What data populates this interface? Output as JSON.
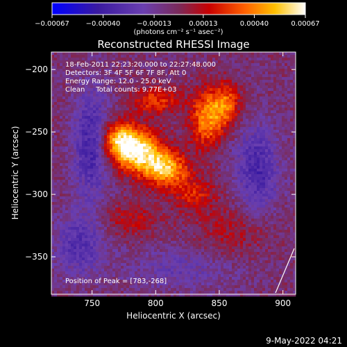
{
  "chart_data": {
    "type": "heatmap",
    "title": "Reconstructed RHESSI Image",
    "xlabel": "Heliocentric X (arcsec)",
    "ylabel": "Heliocentric Y (arcsec)",
    "xlim": [
      718,
      910
    ],
    "ylim": [
      -380,
      -186
    ],
    "x_ticks": [
      750,
      800,
      850,
      900
    ],
    "x_tick_labels": [
      "750",
      "800",
      "850",
      "900"
    ],
    "y_ticks": [
      -200,
      -250,
      -300,
      -350
    ],
    "y_tick_labels": [
      "−200",
      "−250",
      "−300",
      "−350"
    ],
    "colorbar": {
      "ticks": [
        -0.00067,
        -0.0004,
        -0.00013,
        0.00013,
        0.0004,
        0.00067
      ],
      "tick_labels": [
        "−0.00067",
        "−0.00040",
        "−0.00013",
        "0.00013",
        "0.00040",
        "0.00067"
      ],
      "unit_label": "(photons cm⁻² s⁻¹ asec⁻²)",
      "range": [
        -0.00067,
        0.00067
      ]
    },
    "annotations": [
      "18-Feb-2011 22:23:20.000 to 22:27:48.000",
      "Detectors: 3F 4F 5F 6F 7F 8F, Att 0",
      "Energy Range: 12.0 - 25.0 keV",
      "Clean     Total counts: 9.77E+03"
    ],
    "peak_label": "Position of Peak = [783,-268]",
    "peak": [
      783,
      -268
    ],
    "sources": [
      {
        "x": 785,
        "y": -265,
        "sx": 14,
        "sy": 12,
        "amp": 0.00067
      },
      {
        "x": 808,
        "y": -280,
        "sx": 12,
        "sy": 10,
        "amp": 0.00055
      },
      {
        "x": 770,
        "y": -255,
        "sx": 10,
        "sy": 10,
        "amp": 0.0004
      },
      {
        "x": 840,
        "y": -240,
        "sx": 9,
        "sy": 16,
        "amp": 0.00045
      },
      {
        "x": 855,
        "y": -228,
        "sx": 8,
        "sy": 12,
        "amp": 0.0004
      },
      {
        "x": 800,
        "y": -225,
        "sx": 14,
        "sy": 8,
        "amp": 0.0003
      },
      {
        "x": 830,
        "y": -300,
        "sx": 12,
        "sy": 10,
        "amp": 0.00025
      },
      {
        "x": 780,
        "y": -320,
        "sx": 16,
        "sy": 10,
        "amp": 0.00018
      },
      {
        "x": 860,
        "y": -330,
        "sx": 20,
        "sy": 14,
        "amp": 0.00015
      },
      {
        "x": 750,
        "y": -260,
        "sx": 10,
        "sy": 30,
        "amp": -0.00035
      },
      {
        "x": 880,
        "y": -280,
        "sx": 12,
        "sy": 25,
        "amp": -0.0003
      },
      {
        "x": 740,
        "y": -340,
        "sx": 14,
        "sy": 18,
        "amp": -0.00025
      },
      {
        "x": 820,
        "y": -360,
        "sx": 30,
        "sy": 12,
        "amp": -0.00015
      }
    ]
  },
  "footer": {
    "date": "9-May-2022 04:21"
  }
}
